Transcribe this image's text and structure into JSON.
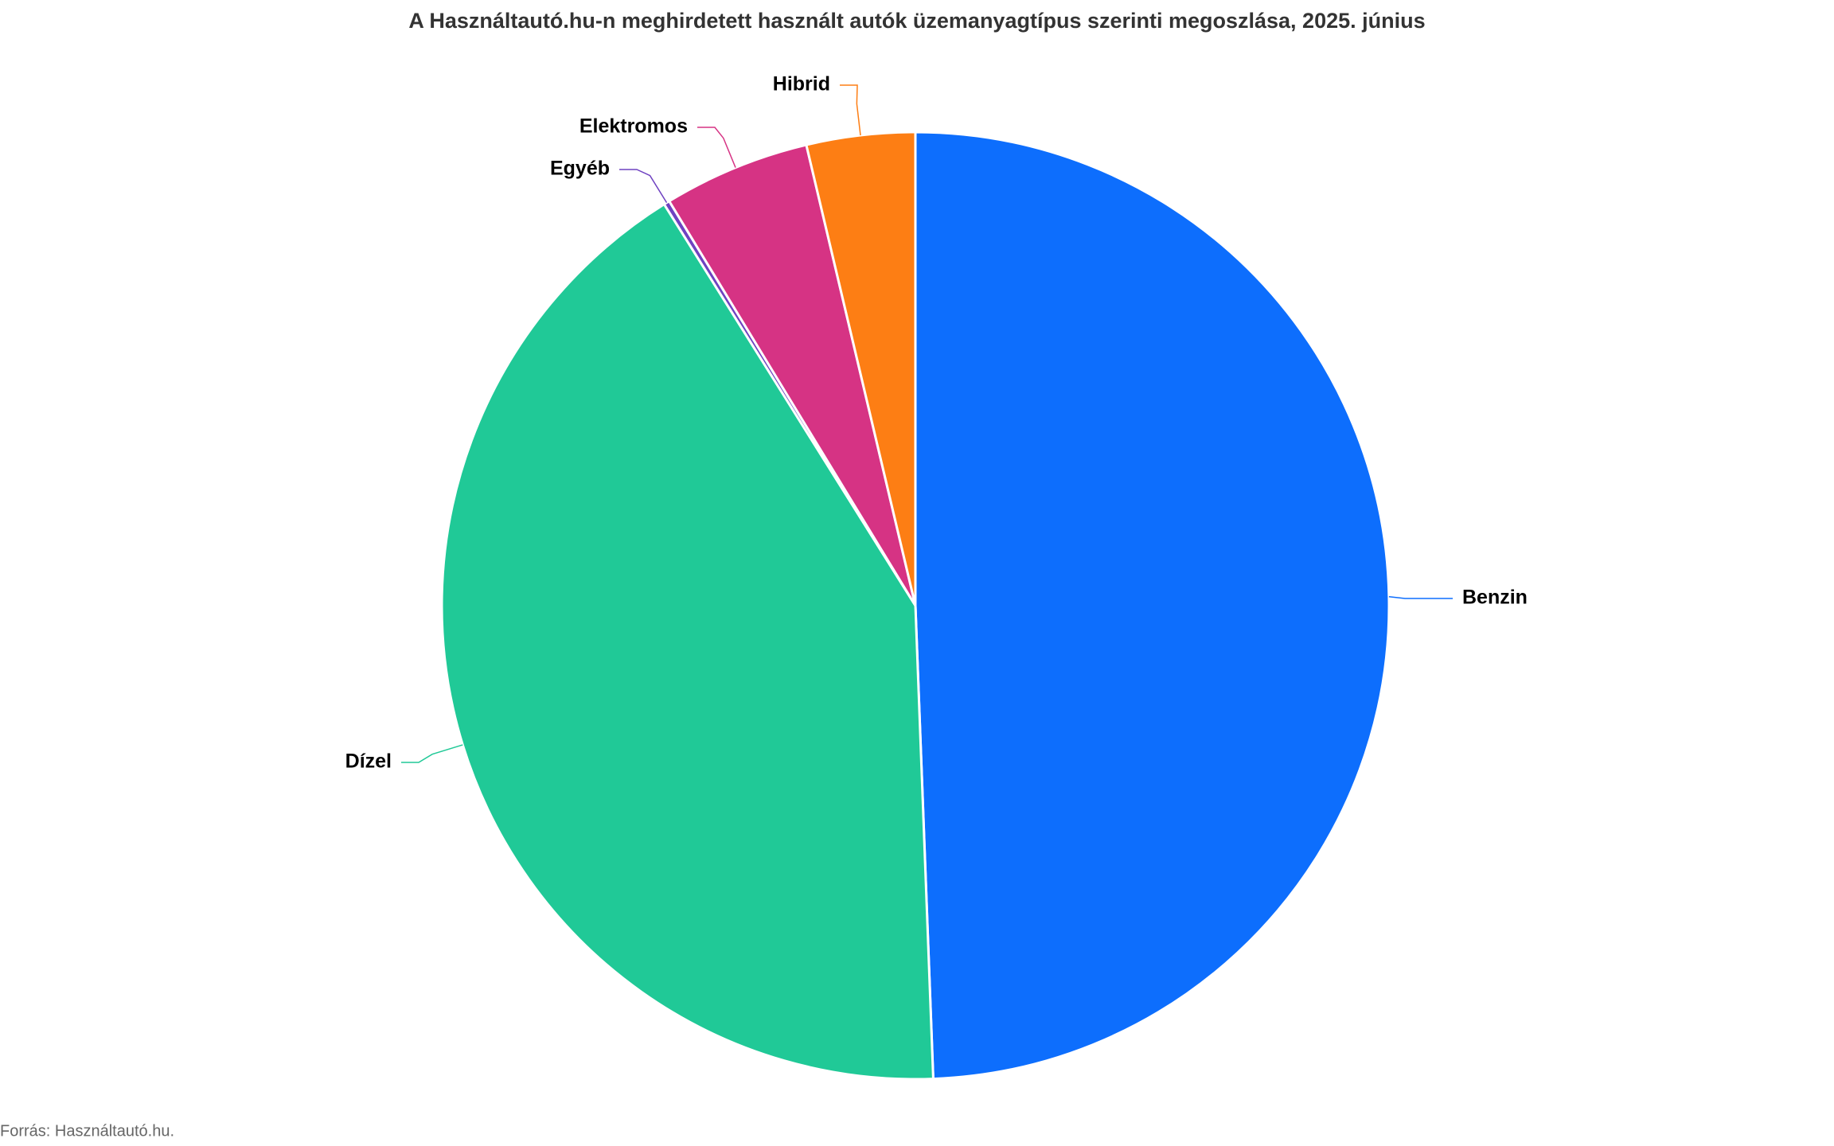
{
  "chart_data": {
    "type": "pie",
    "title": "A Használtautó.hu-n meghirdetett használt autók üzemanyagtípus szerinti megoszlása, 2025. június",
    "source": "Forrás: Használtautó.hu.",
    "categories": [
      "Benzin",
      "Dízel",
      "Egyéb",
      "Elektromos",
      "Hibrid"
    ],
    "values": [
      49.4,
      41.7,
      0.2,
      5.0,
      3.7
    ],
    "colors": [
      "#0d6efd",
      "#20c997",
      "#6f42c1",
      "#d63384",
      "#fd7e14"
    ]
  }
}
